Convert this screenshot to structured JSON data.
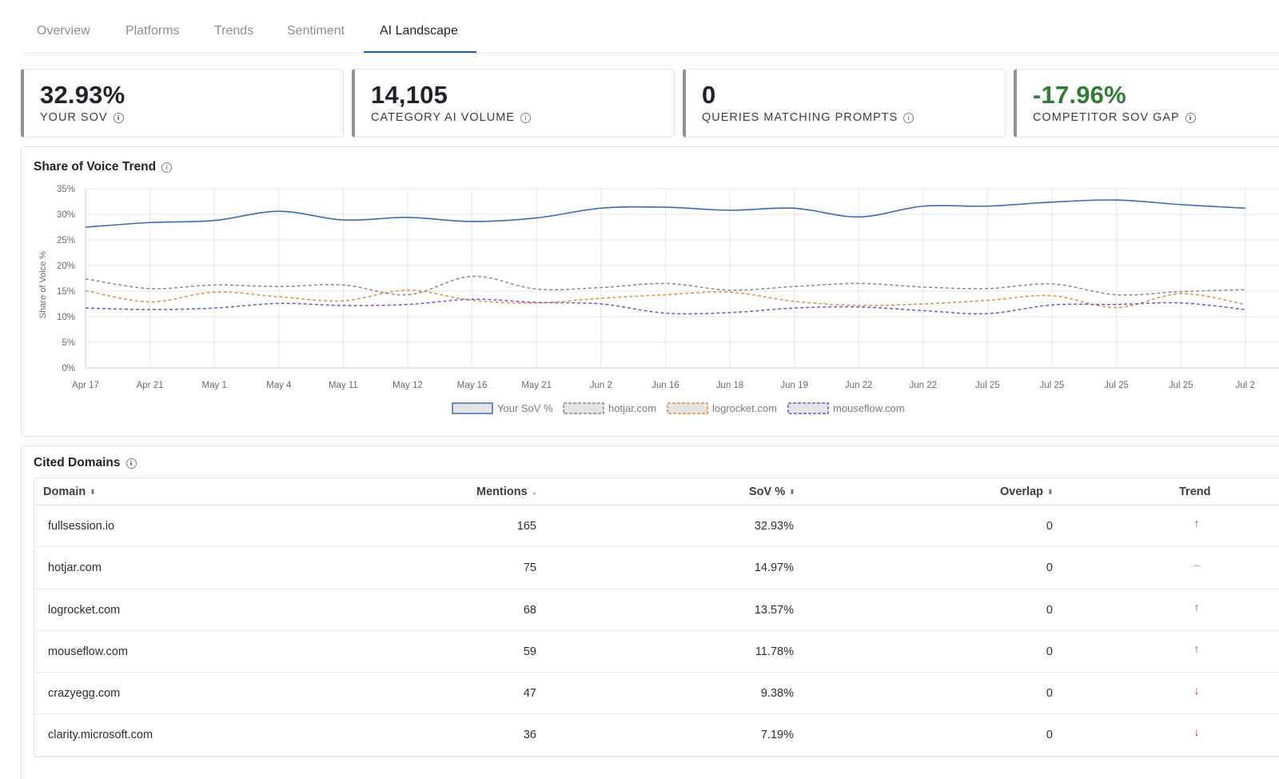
{
  "tabs": [
    {
      "label": "Overview",
      "active": false
    },
    {
      "label": "Platforms",
      "active": false
    },
    {
      "label": "Trends",
      "active": false
    },
    {
      "label": "Sentiment",
      "active": false
    },
    {
      "label": "AI Landscape",
      "active": true
    }
  ],
  "kpis": [
    {
      "value": "32.93%",
      "label": "YOUR SOV",
      "tone": "neutral"
    },
    {
      "value": "14,105",
      "label": "CATEGORY AI VOLUME",
      "tone": "neutral"
    },
    {
      "value": "0",
      "label": "QUERIES MATCHING PROMPTS",
      "tone": "neutral"
    },
    {
      "value": "-17.96%",
      "label": "COMPETITOR SOV GAP",
      "tone": "positive"
    }
  ],
  "sov_panel": {
    "title": "Share of Voice Trend"
  },
  "chart_data": {
    "type": "line",
    "ylabel": "Share of Voice %",
    "ylim": [
      0,
      35
    ],
    "y_ticks": [
      "0%",
      "5%",
      "10%",
      "15%",
      "20%",
      "25%",
      "30%",
      "35%"
    ],
    "x": [
      "Apr 17",
      "Apr 21",
      "May 1",
      "May 4",
      "May 11",
      "May 12",
      "May 16",
      "May 21",
      "Jun 2",
      "Jun 16",
      "Jun 18",
      "Jun 19",
      "Jun 22",
      "Jun 22",
      "Jul 25",
      "Jul 25",
      "Jul 25",
      "Jul 25",
      "Jul 2"
    ],
    "grid": true,
    "legend_position": "bottom",
    "series": [
      {
        "name": "Your SoV %",
        "color": "#3b6db3",
        "dash": false,
        "values": [
          27.5,
          28.4,
          28.8,
          30.6,
          28.9,
          29.4,
          28.6,
          29.3,
          31.2,
          31.4,
          30.8,
          31.2,
          29.5,
          31.6,
          31.6,
          32.4,
          32.8,
          31.9,
          31.2
        ]
      },
      {
        "name": "hotjar.com",
        "color": "#8a8a8a",
        "dash": true,
        "values": [
          17.4,
          15.5,
          16.2,
          15.9,
          16.2,
          14.3,
          17.9,
          15.4,
          15.7,
          16.5,
          15.2,
          15.9,
          16.5,
          15.8,
          15.5,
          16.4,
          14.3,
          14.9,
          15.3
        ]
      },
      {
        "name": "logrocket.com",
        "color": "#e98b3a",
        "dash": true,
        "values": [
          15.1,
          12.9,
          14.8,
          13.9,
          13.1,
          15.2,
          13.2,
          12.7,
          13.6,
          14.3,
          14.8,
          13.0,
          12.2,
          12.5,
          13.2,
          14.1,
          11.8,
          14.5,
          12.4
        ]
      },
      {
        "name": "mouseflow.com",
        "color": "#7a4fc9",
        "dash": true,
        "values": [
          11.7,
          11.4,
          11.7,
          12.6,
          12.2,
          12.4,
          13.4,
          12.8,
          12.5,
          10.7,
          10.8,
          11.7,
          11.9,
          11.2,
          10.6,
          12.3,
          12.4,
          12.7,
          11.4
        ]
      }
    ]
  },
  "cited_domains": {
    "title": "Cited Domains",
    "columns": {
      "domain": "Domain",
      "mentions": "Mentions",
      "sov": "SoV %",
      "overlap": "Overlap",
      "trend": "Trend"
    },
    "rows": [
      {
        "domain": "fullsession.io",
        "mentions": "165",
        "sov": "32.93%",
        "overlap": "0",
        "trend": "up"
      },
      {
        "domain": "hotjar.com",
        "mentions": "75",
        "sov": "14.97%",
        "overlap": "0",
        "trend": "flat"
      },
      {
        "domain": "logrocket.com",
        "mentions": "68",
        "sov": "13.57%",
        "overlap": "0",
        "trend": "up"
      },
      {
        "domain": "mouseflow.com",
        "mentions": "59",
        "sov": "11.78%",
        "overlap": "0",
        "trend": "up"
      },
      {
        "domain": "crazyegg.com",
        "mentions": "47",
        "sov": "9.38%",
        "overlap": "0",
        "trend": "down"
      },
      {
        "domain": "clarity.microsoft.com",
        "mentions": "36",
        "sov": "7.19%",
        "overlap": "0",
        "trend": "down"
      }
    ]
  },
  "icons": {
    "info": "info-icon",
    "sort": "sort-icon",
    "trend_up": "arrow-up-icon",
    "trend_down": "arrow-down-icon",
    "trend_flat": "dash-icon"
  }
}
